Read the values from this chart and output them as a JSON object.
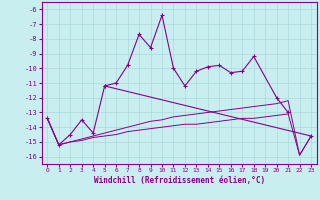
{
  "xlabel": "Windchill (Refroidissement éolien,°C)",
  "background_color": "#c8eef0",
  "grid_color": "#b0dde0",
  "line_color": "#880088",
  "x_ticks": [
    0,
    1,
    2,
    3,
    4,
    5,
    6,
    7,
    8,
    9,
    10,
    11,
    12,
    13,
    14,
    15,
    16,
    17,
    18,
    19,
    20,
    21,
    22,
    23
  ],
  "ylim": [
    -16.5,
    -5.5
  ],
  "xlim": [
    -0.5,
    23.5
  ],
  "yticks": [
    -6,
    -7,
    -8,
    -9,
    -10,
    -11,
    -12,
    -13,
    -14,
    -15,
    -16
  ],
  "series": [
    [
      null,
      null,
      null,
      null,
      null,
      -11.2,
      -11.0,
      -9.8,
      -7.7,
      -8.6,
      -6.4,
      -10.0,
      -11.2,
      -10.2,
      -9.9,
      -9.8,
      -10.3,
      -10.2,
      -9.2,
      null,
      -12.0,
      -13.0,
      null,
      null
    ],
    [
      -13.4,
      -15.2,
      -14.5,
      -13.5,
      -14.4,
      -11.2,
      null,
      null,
      null,
      null,
      null,
      null,
      null,
      null,
      null,
      null,
      null,
      null,
      null,
      null,
      null,
      null,
      null,
      -14.6
    ],
    [
      -13.4,
      -15.2,
      -15.0,
      -14.8,
      -14.6,
      -14.4,
      -14.2,
      -14.0,
      -13.8,
      -13.6,
      -13.5,
      -13.3,
      -13.2,
      -13.1,
      -13.0,
      -12.9,
      -12.8,
      -12.7,
      -12.6,
      -12.5,
      -12.4,
      -12.2,
      -15.9,
      -14.6
    ],
    [
      -13.4,
      -15.2,
      -15.0,
      -14.9,
      -14.7,
      -14.6,
      -14.5,
      -14.3,
      -14.2,
      -14.1,
      -14.0,
      -13.9,
      -13.8,
      -13.8,
      -13.7,
      -13.6,
      -13.5,
      -13.4,
      -13.4,
      -13.3,
      -13.2,
      -13.1,
      -15.9,
      -14.6
    ]
  ]
}
